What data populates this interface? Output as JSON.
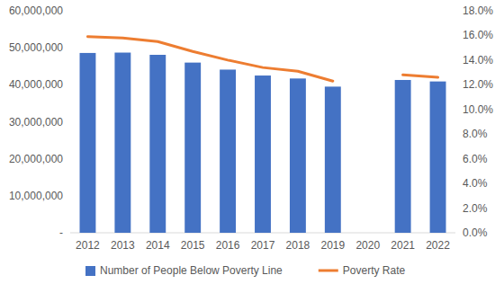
{
  "chart_data": {
    "type": "bar",
    "categories": [
      "2012",
      "2013",
      "2014",
      "2015",
      "2016",
      "2017",
      "2018",
      "2019",
      "2020",
      "2021",
      "2022"
    ],
    "series": [
      {
        "name": "Number of People Below Poverty Line",
        "type": "bar",
        "color": "#4472c4",
        "values": [
          48600000,
          48700000,
          48100000,
          46000000,
          44100000,
          42500000,
          41700000,
          39500000,
          null,
          41300000,
          40900000
        ]
      },
      {
        "name": "Poverty Rate",
        "type": "line",
        "color": "#ed7d31",
        "axis": "y2",
        "values": [
          15.9,
          15.8,
          15.5,
          14.7,
          14.0,
          13.4,
          13.1,
          12.3,
          null,
          12.8,
          12.6
        ]
      }
    ],
    "ylim": [
      0,
      60000000
    ],
    "yticks": [
      {
        "value": 0,
        "label": "-"
      },
      {
        "value": 10000000,
        "label": "10,000,000"
      },
      {
        "value": 20000000,
        "label": "20,000,000"
      },
      {
        "value": 30000000,
        "label": "30,000,000"
      },
      {
        "value": 40000000,
        "label": "40,000,000"
      },
      {
        "value": 50000000,
        "label": "50,000,000"
      },
      {
        "value": 60000000,
        "label": "60,000,000"
      }
    ],
    "y2lim": [
      0,
      18
    ],
    "y2ticks": [
      {
        "value": 0,
        "label": "0.0%"
      },
      {
        "value": 2,
        "label": "2.0%"
      },
      {
        "value": 4,
        "label": "4.0%"
      },
      {
        "value": 6,
        "label": "6.0%"
      },
      {
        "value": 8,
        "label": "8.0%"
      },
      {
        "value": 10,
        "label": "10.0%"
      },
      {
        "value": 12,
        "label": "12.0%"
      },
      {
        "value": 14,
        "label": "14.0%"
      },
      {
        "value": 16,
        "label": "16.0%"
      },
      {
        "value": 18,
        "label": "18.0%"
      }
    ],
    "grid": false,
    "legend": "bottom"
  }
}
